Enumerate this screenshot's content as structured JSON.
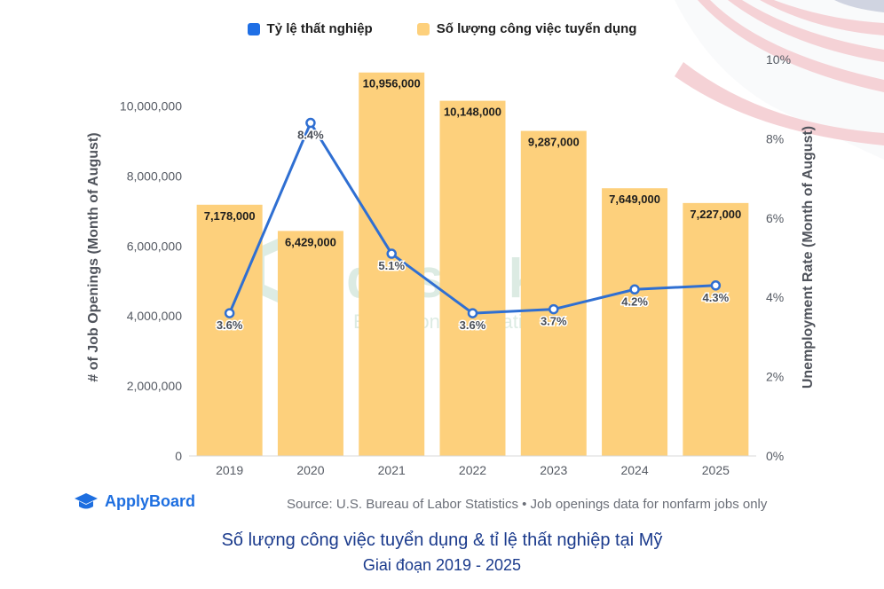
{
  "legend": {
    "rate_label": "Tỷ lệ thất nghiệp",
    "openings_label": "Số lượng công việc tuyển dụng"
  },
  "colors": {
    "bar": "#fdd07c",
    "line": "#2f6fd2",
    "rate_swatch": "#1f6fe5",
    "brand": "#1e6fe0",
    "caption": "#1a3a8c"
  },
  "chart_data": {
    "type": "bar",
    "categories": [
      "2019",
      "2020",
      "2021",
      "2022",
      "2023",
      "2024",
      "2025"
    ],
    "series": [
      {
        "name": "Số lượng công việc tuyển dụng",
        "type": "bar",
        "axis": "left",
        "values": [
          7178000,
          6429000,
          10956000,
          10148000,
          9287000,
          7649000,
          7227000
        ],
        "labels": [
          "7,178,000",
          "6,429,000",
          "10,956,000",
          "10,148,000",
          "9,287,000",
          "7,649,000",
          "7,227,000"
        ]
      },
      {
        "name": "Tỷ lệ thất nghiệp",
        "type": "line",
        "axis": "right",
        "values": [
          3.6,
          8.4,
          5.1,
          3.6,
          3.7,
          4.2,
          4.3
        ],
        "labels": [
          "3.6%",
          "8.4%",
          "5.1%",
          "3.6%",
          "3.7%",
          "4.2%",
          "4.3%"
        ]
      }
    ],
    "ylabel_left": "# of Job Openings (Month of August)",
    "ylabel_right": "Unemployment Rate (Month of August)",
    "ylim_left": [
      0,
      11000000
    ],
    "ylim_right": [
      0,
      10
    ],
    "left_ticks": [
      0,
      2000000,
      4000000,
      6000000,
      8000000,
      10000000
    ],
    "left_tick_labels": [
      "0",
      "2,000,000",
      "4,000,000",
      "6,000,000",
      "8,000,000",
      "10,000,000"
    ],
    "right_ticks": [
      0,
      2,
      4,
      6,
      8,
      10
    ],
    "right_tick_labels": [
      "0%",
      "2%",
      "4%",
      "6%",
      "8%",
      "10%"
    ],
    "grid": false,
    "legend_position": "top-center"
  },
  "watermark": {
    "name": "doslink",
    "tagline": "Education & Migration"
  },
  "footer": {
    "brand": "ApplyBoard",
    "source": "Source: U.S. Bureau of Labor Statistics • Job openings data for nonfarm jobs only"
  },
  "caption": {
    "title": "Số lượng công việc tuyển dụng & tỉ lệ thất nghiệp tại Mỹ",
    "subtitle": "Giai đoạn 2019 - 2025"
  }
}
